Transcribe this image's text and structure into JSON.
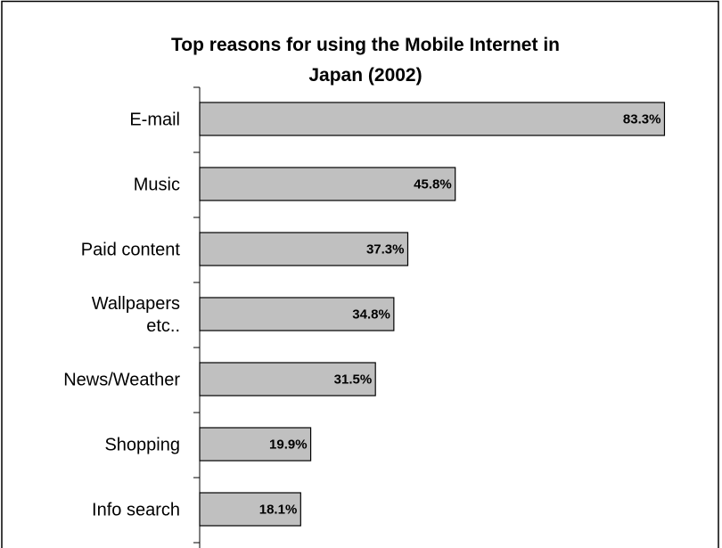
{
  "colors": {
    "bar_fill": "#c0c0c0",
    "bar_stroke": "#000000",
    "frame_stroke": "#000000",
    "background": "#ffffff"
  },
  "chart_data": {
    "type": "bar",
    "orientation": "horizontal",
    "title_lines": [
      "Top reasons for using the Mobile Internet in",
      "Japan  (2002)"
    ],
    "categories": [
      [
        "E-mail"
      ],
      [
        "Music"
      ],
      [
        "Paid content"
      ],
      [
        "Wallpapers",
        "etc.."
      ],
      [
        "News/Weather"
      ],
      [
        "Shopping"
      ],
      [
        "Info search"
      ]
    ],
    "values": [
      83.3,
      45.8,
      37.3,
      34.8,
      31.5,
      19.9,
      18.1
    ],
    "value_labels": [
      "83.3%",
      "45.8%",
      "37.3%",
      "34.8%",
      "31.5%",
      "19.9%",
      "18.1%"
    ],
    "unit": "%",
    "xlim": [
      0,
      100
    ],
    "grid": false,
    "legend": "none"
  }
}
